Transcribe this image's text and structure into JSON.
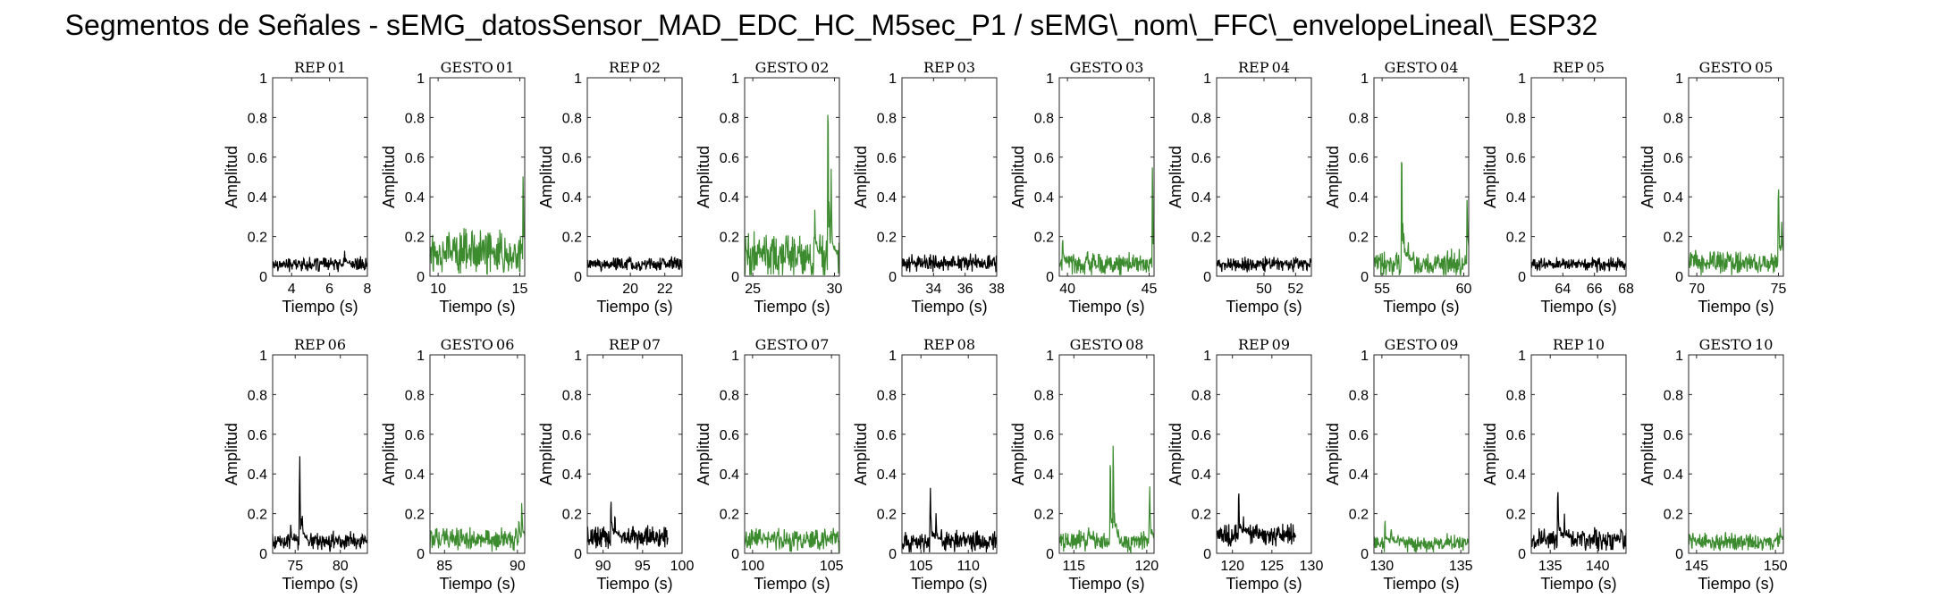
{
  "figure_title": "Segmentos de Señales - sEMG_datosSensor_MAD_EDC_HC_M5sec_P1 / sEMG\\_nom\\_FFC\\_envelopeLineal\\_ESP32",
  "colors": {
    "rep": "#000000",
    "gesto": "#3d8b2f"
  },
  "chart_data": [
    {
      "type": "line",
      "title": "REP_01",
      "xlabel": "Tiempo (s)",
      "ylabel": "Amplitud",
      "xlim": [
        3,
        8
      ],
      "ylim": [
        0,
        1
      ],
      "xticks": [
        4,
        6,
        8
      ],
      "yticks": [
        0,
        0.2,
        0.4,
        0.6,
        0.8,
        1
      ],
      "color": "rep",
      "baseline": 0.06,
      "noise": 0.03,
      "spikes": [
        [
          6.8,
          0.14
        ]
      ]
    },
    {
      "type": "line",
      "title": "GESTO_01",
      "xlabel": "Tiempo (s)",
      "ylabel": "Amplitud",
      "xlim": [
        9.5,
        15.3
      ],
      "ylim": [
        0,
        1
      ],
      "xticks": [
        10,
        15
      ],
      "yticks": [
        0,
        0.2,
        0.4,
        0.6,
        0.8,
        1
      ],
      "color": "gesto",
      "baseline": 0.12,
      "noise": 0.1,
      "spikes": [
        [
          15.2,
          0.55
        ]
      ]
    },
    {
      "type": "line",
      "title": "REP_02",
      "xlabel": "Tiempo (s)",
      "ylabel": "Amplitud",
      "xlim": [
        17.5,
        23
      ],
      "ylim": [
        0,
        1
      ],
      "xticks": [
        20,
        22
      ],
      "yticks": [
        0,
        0.2,
        0.4,
        0.6,
        0.8,
        1
      ],
      "color": "rep",
      "baseline": 0.06,
      "noise": 0.03,
      "spikes": []
    },
    {
      "type": "line",
      "title": "GESTO_02",
      "xlabel": "Tiempo (s)",
      "ylabel": "Amplitud",
      "xlim": [
        24.5,
        30.3
      ],
      "ylim": [
        0,
        1
      ],
      "xticks": [
        25,
        30
      ],
      "yticks": [
        0,
        0.2,
        0.4,
        0.6,
        0.8,
        1
      ],
      "color": "gesto",
      "baseline": 0.1,
      "noise": 0.1,
      "spikes": [
        [
          28.8,
          0.35
        ],
        [
          29.6,
          1.0
        ],
        [
          29.8,
          0.55
        ]
      ]
    },
    {
      "type": "line",
      "title": "REP_03",
      "xlabel": "Tiempo (s)",
      "ylabel": "Amplitud",
      "xlim": [
        32,
        38
      ],
      "ylim": [
        0,
        1
      ],
      "xticks": [
        34,
        36,
        38
      ],
      "yticks": [
        0,
        0.2,
        0.4,
        0.6,
        0.8,
        1
      ],
      "color": "rep",
      "baseline": 0.07,
      "noise": 0.04,
      "spikes": []
    },
    {
      "type": "line",
      "title": "GESTO_03",
      "xlabel": "Tiempo (s)",
      "ylabel": "Amplitud",
      "xlim": [
        39.5,
        45.3
      ],
      "ylim": [
        0,
        1
      ],
      "xticks": [
        40,
        45
      ],
      "yticks": [
        0,
        0.2,
        0.4,
        0.6,
        0.8,
        1
      ],
      "color": "gesto",
      "baseline": 0.06,
      "noise": 0.05,
      "spikes": [
        [
          39.7,
          0.22
        ],
        [
          45.2,
          0.6
        ]
      ]
    },
    {
      "type": "line",
      "title": "REP_04",
      "xlabel": "Tiempo (s)",
      "ylabel": "Amplitud",
      "xlim": [
        47,
        53
      ],
      "ylim": [
        0,
        1
      ],
      "xticks": [
        50,
        52
      ],
      "yticks": [
        0,
        0.2,
        0.4,
        0.6,
        0.8,
        1
      ],
      "color": "rep",
      "baseline": 0.06,
      "noise": 0.03,
      "spikes": []
    },
    {
      "type": "line",
      "title": "GESTO_04",
      "xlabel": "Tiempo (s)",
      "ylabel": "Amplitud",
      "xlim": [
        54.5,
        60.3
      ],
      "ylim": [
        0,
        1
      ],
      "xticks": [
        55,
        60
      ],
      "yticks": [
        0,
        0.2,
        0.4,
        0.6,
        0.8,
        1
      ],
      "color": "gesto",
      "baseline": 0.06,
      "noise": 0.06,
      "spikes": [
        [
          56.2,
          0.72
        ],
        [
          56.6,
          0.2
        ],
        [
          60.2,
          0.42
        ]
      ]
    },
    {
      "type": "line",
      "title": "REP_05",
      "xlabel": "Tiempo (s)",
      "ylabel": "Amplitud",
      "xlim": [
        62,
        68
      ],
      "ylim": [
        0,
        1
      ],
      "xticks": [
        64,
        66,
        68
      ],
      "yticks": [
        0,
        0.2,
        0.4,
        0.6,
        0.8,
        1
      ],
      "color": "rep",
      "baseline": 0.06,
      "noise": 0.03,
      "spikes": []
    },
    {
      "type": "line",
      "title": "GESTO_05",
      "xlabel": "Tiempo (s)",
      "ylabel": "Amplitud",
      "xlim": [
        69.5,
        75.3
      ],
      "ylim": [
        0,
        1
      ],
      "xticks": [
        70,
        75
      ],
      "yticks": [
        0,
        0.2,
        0.4,
        0.6,
        0.8,
        1
      ],
      "color": "gesto",
      "baseline": 0.07,
      "noise": 0.05,
      "spikes": [
        [
          75.0,
          0.52
        ],
        [
          75.2,
          0.3
        ]
      ]
    },
    {
      "type": "line",
      "title": "REP_06",
      "xlabel": "Tiempo (s)",
      "ylabel": "Amplitud",
      "xlim": [
        72.5,
        83
      ],
      "ylim": [
        0,
        1
      ],
      "xticks": [
        75,
        80
      ],
      "yticks": [
        0,
        0.2,
        0.4,
        0.6,
        0.8,
        1
      ],
      "color": "rep",
      "baseline": 0.06,
      "noise": 0.04,
      "spikes": [
        [
          75.5,
          0.52
        ],
        [
          75.8,
          0.2
        ],
        [
          74.5,
          0.15
        ]
      ]
    },
    {
      "type": "line",
      "title": "GESTO_06",
      "xlabel": "Tiempo (s)",
      "ylabel": "Amplitud",
      "xlim": [
        84,
        90.5
      ],
      "ylim": [
        0,
        1
      ],
      "xticks": [
        85,
        90
      ],
      "yticks": [
        0,
        0.2,
        0.4,
        0.6,
        0.8,
        1
      ],
      "color": "gesto",
      "baseline": 0.07,
      "noise": 0.05,
      "spikes": [
        [
          90.3,
          0.28
        ],
        [
          90.1,
          0.2
        ]
      ]
    },
    {
      "type": "line",
      "title": "REP_07",
      "xlabel": "Tiempo (s)",
      "ylabel": "Amplitud",
      "xlim": [
        88,
        100
      ],
      "ylim": [
        0,
        1
      ],
      "xticks": [
        90,
        95,
        100
      ],
      "yticks": [
        0,
        0.2,
        0.4,
        0.6,
        0.8,
        1
      ],
      "color": "rep",
      "baseline": 0.08,
      "noise": 0.05,
      "spikes": [
        [
          91.0,
          0.29
        ],
        [
          91.5,
          0.22
        ]
      ],
      "xend": 98.2
    },
    {
      "type": "line",
      "title": "GESTO_07",
      "xlabel": "Tiempo (s)",
      "ylabel": "Amplitud",
      "xlim": [
        99.5,
        105.5
      ],
      "ylim": [
        0,
        1
      ],
      "xticks": [
        100,
        105
      ],
      "yticks": [
        0,
        0.2,
        0.4,
        0.6,
        0.8,
        1
      ],
      "color": "gesto",
      "baseline": 0.07,
      "noise": 0.05,
      "spikes": []
    },
    {
      "type": "line",
      "title": "REP_08",
      "xlabel": "Tiempo (s)",
      "ylabel": "Amplitud",
      "xlim": [
        103,
        113
      ],
      "ylim": [
        0,
        1
      ],
      "xticks": [
        105,
        110
      ],
      "yticks": [
        0,
        0.2,
        0.4,
        0.6,
        0.8,
        1
      ],
      "color": "rep",
      "baseline": 0.06,
      "noise": 0.05,
      "spikes": [
        [
          106.0,
          0.33
        ],
        [
          106.6,
          0.22
        ]
      ]
    },
    {
      "type": "line",
      "title": "GESTO_08",
      "xlabel": "Tiempo (s)",
      "ylabel": "Amplitud",
      "xlim": [
        114,
        120.5
      ],
      "ylim": [
        0,
        1
      ],
      "xticks": [
        115,
        120
      ],
      "yticks": [
        0,
        0.2,
        0.4,
        0.6,
        0.8,
        1
      ],
      "color": "gesto",
      "baseline": 0.06,
      "noise": 0.05,
      "spikes": [
        [
          117.5,
          0.55
        ],
        [
          117.7,
          0.6
        ],
        [
          120.2,
          0.36
        ],
        [
          116.0,
          0.15
        ]
      ]
    },
    {
      "type": "line",
      "title": "REP_09",
      "xlabel": "Tiempo (s)",
      "ylabel": "Amplitud",
      "xlim": [
        118,
        130
      ],
      "ylim": [
        0,
        1
      ],
      "xticks": [
        120,
        125,
        130
      ],
      "yticks": [
        0,
        0.2,
        0.4,
        0.6,
        0.8,
        1
      ],
      "color": "rep",
      "baseline": 0.09,
      "noise": 0.05,
      "spikes": [
        [
          120.8,
          0.35
        ],
        [
          121.4,
          0.2
        ]
      ],
      "xend": 128
    },
    {
      "type": "line",
      "title": "GESTO_09",
      "xlabel": "Tiempo (s)",
      "ylabel": "Amplitud",
      "xlim": [
        129.5,
        135.5
      ],
      "ylim": [
        0,
        1
      ],
      "xticks": [
        130,
        135
      ],
      "yticks": [
        0,
        0.2,
        0.4,
        0.6,
        0.8,
        1
      ],
      "color": "gesto",
      "baseline": 0.05,
      "noise": 0.04,
      "spikes": [
        [
          130.2,
          0.19
        ],
        [
          130.6,
          0.14
        ]
      ]
    },
    {
      "type": "line",
      "title": "REP_10",
      "xlabel": "Tiempo (s)",
      "ylabel": "Amplitud",
      "xlim": [
        133,
        143
      ],
      "ylim": [
        0,
        1
      ],
      "xticks": [
        135,
        140
      ],
      "yticks": [
        0,
        0.2,
        0.4,
        0.6,
        0.8,
        1
      ],
      "color": "rep",
      "baseline": 0.07,
      "noise": 0.05,
      "spikes": [
        [
          135.8,
          0.37
        ],
        [
          136.5,
          0.2
        ]
      ]
    },
    {
      "type": "line",
      "title": "GESTO_10",
      "xlabel": "Tiempo (s)",
      "ylabel": "Amplitud",
      "xlim": [
        144.5,
        150.5
      ],
      "ylim": [
        0,
        1
      ],
      "xticks": [
        145,
        150
      ],
      "yticks": [
        0,
        0.2,
        0.4,
        0.6,
        0.8,
        1
      ],
      "color": "gesto",
      "baseline": 0.06,
      "noise": 0.04,
      "spikes": [
        [
          150.3,
          0.15
        ]
      ]
    }
  ]
}
